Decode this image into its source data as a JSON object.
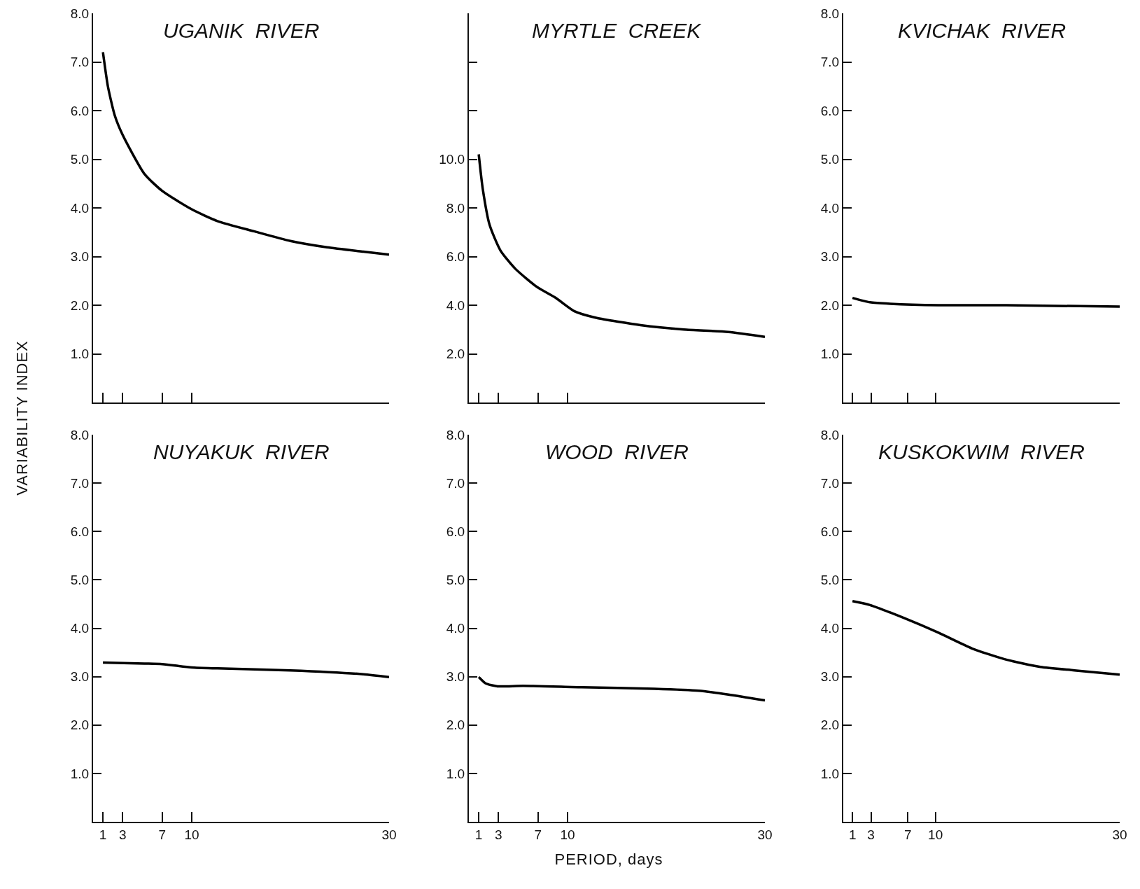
{
  "chart_data": [
    {
      "type": "line",
      "title": "UGANIK  RIVER",
      "ylabel": "VARIABILITY   INDEX",
      "tick_labels": "y",
      "xlim": [
        0,
        30
      ],
      "xticks": [
        1,
        3,
        7,
        10,
        30
      ],
      "ylim": [
        0,
        8
      ],
      "yticks": [
        {
          "value": 1,
          "label": "1.0"
        },
        {
          "value": 2,
          "label": "2.0"
        },
        {
          "value": 3,
          "label": "3.0"
        },
        {
          "value": 4,
          "label": "4.0"
        },
        {
          "value": 5,
          "label": "5.0"
        },
        {
          "value": 6,
          "label": "6.0"
        },
        {
          "value": 7,
          "label": "7.0"
        },
        {
          "value": 8,
          "label": "8.0"
        }
      ],
      "series": [
        {
          "color": "#000000",
          "x": [
            1,
            1.5,
            2.2,
            3,
            5.2,
            7,
            10,
            12.6,
            16.3,
            20,
            23.7,
            27.4,
            30
          ],
          "values": [
            7.2,
            6.5,
            5.9,
            5.5,
            4.7,
            4.35,
            3.97,
            3.73,
            3.52,
            3.32,
            3.19,
            3.1,
            3.04
          ]
        }
      ]
    },
    {
      "type": "line",
      "title": "MYRTLE  CREEK",
      "tick_labels": "y",
      "xlim": [
        0,
        30
      ],
      "xticks": [
        1,
        3,
        7,
        10,
        30
      ],
      "ylim": [
        0,
        16
      ],
      "yticks": [
        {
          "value": 2,
          "label": "2.0"
        },
        {
          "value": 4,
          "label": "4.0"
        },
        {
          "value": 6,
          "label": "6.0"
        },
        {
          "value": 8,
          "label": "8.0"
        },
        {
          "value": 10,
          "label": "10.0"
        },
        {
          "value": 12,
          "label": null
        },
        {
          "value": 14,
          "label": null
        }
      ],
      "series": [
        {
          "color": "#000000",
          "x": [
            1,
            1.4,
            2.1,
            3.2,
            4.7,
            6.9,
            8.8,
            10.7,
            12.9,
            17.4,
            21.8,
            26.3,
            30
          ],
          "values": [
            10.2,
            8.8,
            7.3,
            6.25,
            5.5,
            4.75,
            4.3,
            3.75,
            3.48,
            3.18,
            3.0,
            2.9,
            2.7
          ]
        }
      ]
    },
    {
      "type": "line",
      "title": "KVICHAK  RIVER",
      "tick_labels": "y",
      "xlim": [
        0,
        30
      ],
      "xticks": [
        1,
        3,
        7,
        10,
        30
      ],
      "ylim": [
        0,
        8
      ],
      "yticks": [
        {
          "value": 1,
          "label": "1.0"
        },
        {
          "value": 2,
          "label": "2.0"
        },
        {
          "value": 3,
          "label": "3.0"
        },
        {
          "value": 4,
          "label": "4.0"
        },
        {
          "value": 5,
          "label": "5.0"
        },
        {
          "value": 6,
          "label": "6.0"
        },
        {
          "value": 7,
          "label": "7.0"
        },
        {
          "value": 8,
          "label": "8.0"
        }
      ],
      "series": [
        {
          "color": "#000000",
          "x": [
            1,
            2.9,
            5.1,
            10.3,
            17.7,
            30
          ],
          "values": [
            2.15,
            2.06,
            2.03,
            2.0,
            2.0,
            1.97
          ]
        }
      ]
    },
    {
      "type": "line",
      "title": "NUYAKUK  RIVER",
      "xlim": [
        0,
        30
      ],
      "xticks": [
        1,
        3,
        7,
        10,
        30
      ],
      "ylim": [
        0,
        8
      ],
      "yticks": [
        {
          "value": 1,
          "label": "1.0"
        },
        {
          "value": 2,
          "label": "2.0"
        },
        {
          "value": 3,
          "label": "3.0"
        },
        {
          "value": 4,
          "label": "4.0"
        },
        {
          "value": 5,
          "label": "5.0"
        },
        {
          "value": 6,
          "label": "6.0"
        },
        {
          "value": 7,
          "label": "7.0"
        },
        {
          "value": 8,
          "label": "8.0"
        }
      ],
      "series": [
        {
          "color": "#000000",
          "x": [
            1,
            5.2,
            7,
            10,
            12.6,
            20,
            27.4,
            30
          ],
          "values": [
            3.29,
            3.27,
            3.26,
            3.19,
            3.17,
            3.13,
            3.05,
            2.99
          ]
        }
      ]
    },
    {
      "type": "line",
      "title": "WOOD  RIVER",
      "xlabel": "PERIOD, days",
      "xlim": [
        0,
        30
      ],
      "xticks": [
        1,
        3,
        7,
        10,
        30
      ],
      "ylim": [
        0,
        8
      ],
      "yticks": [
        {
          "value": 1,
          "label": "1.0"
        },
        {
          "value": 2,
          "label": "2.0"
        },
        {
          "value": 3,
          "label": "3.0"
        },
        {
          "value": 4,
          "label": "4.0"
        },
        {
          "value": 5,
          "label": "5.0"
        },
        {
          "value": 6,
          "label": "6.0"
        },
        {
          "value": 7,
          "label": "7.0"
        },
        {
          "value": 8,
          "label": "8.0"
        }
      ],
      "series": [
        {
          "color": "#000000",
          "x": [
            1,
            1.7,
            2.9,
            5.5,
            11.4,
            18.8,
            23.3,
            26.3,
            30
          ],
          "values": [
            2.99,
            2.86,
            2.8,
            2.81,
            2.78,
            2.75,
            2.71,
            2.63,
            2.51
          ]
        }
      ]
    },
    {
      "type": "line",
      "title": "KUSKOKWIM  RIVER",
      "xlim": [
        0,
        30
      ],
      "xticks": [
        1,
        3,
        7,
        10,
        30
      ],
      "ylim": [
        0,
        8
      ],
      "yticks": [
        {
          "value": 1,
          "label": "1.0"
        },
        {
          "value": 2,
          "label": "2.0"
        },
        {
          "value": 3,
          "label": "3.0"
        },
        {
          "value": 4,
          "label": "4.0"
        },
        {
          "value": 5,
          "label": "5.0"
        },
        {
          "value": 6,
          "label": "6.0"
        },
        {
          "value": 7,
          "label": "7.0"
        },
        {
          "value": 8,
          "label": "8.0"
        }
      ],
      "series": [
        {
          "color": "#000000",
          "x": [
            1,
            2.9,
            6.6,
            10.3,
            14,
            17.7,
            21.4,
            25.1,
            30
          ],
          "values": [
            4.56,
            4.48,
            4.21,
            3.91,
            3.58,
            3.35,
            3.2,
            3.13,
            3.04
          ]
        }
      ]
    }
  ]
}
